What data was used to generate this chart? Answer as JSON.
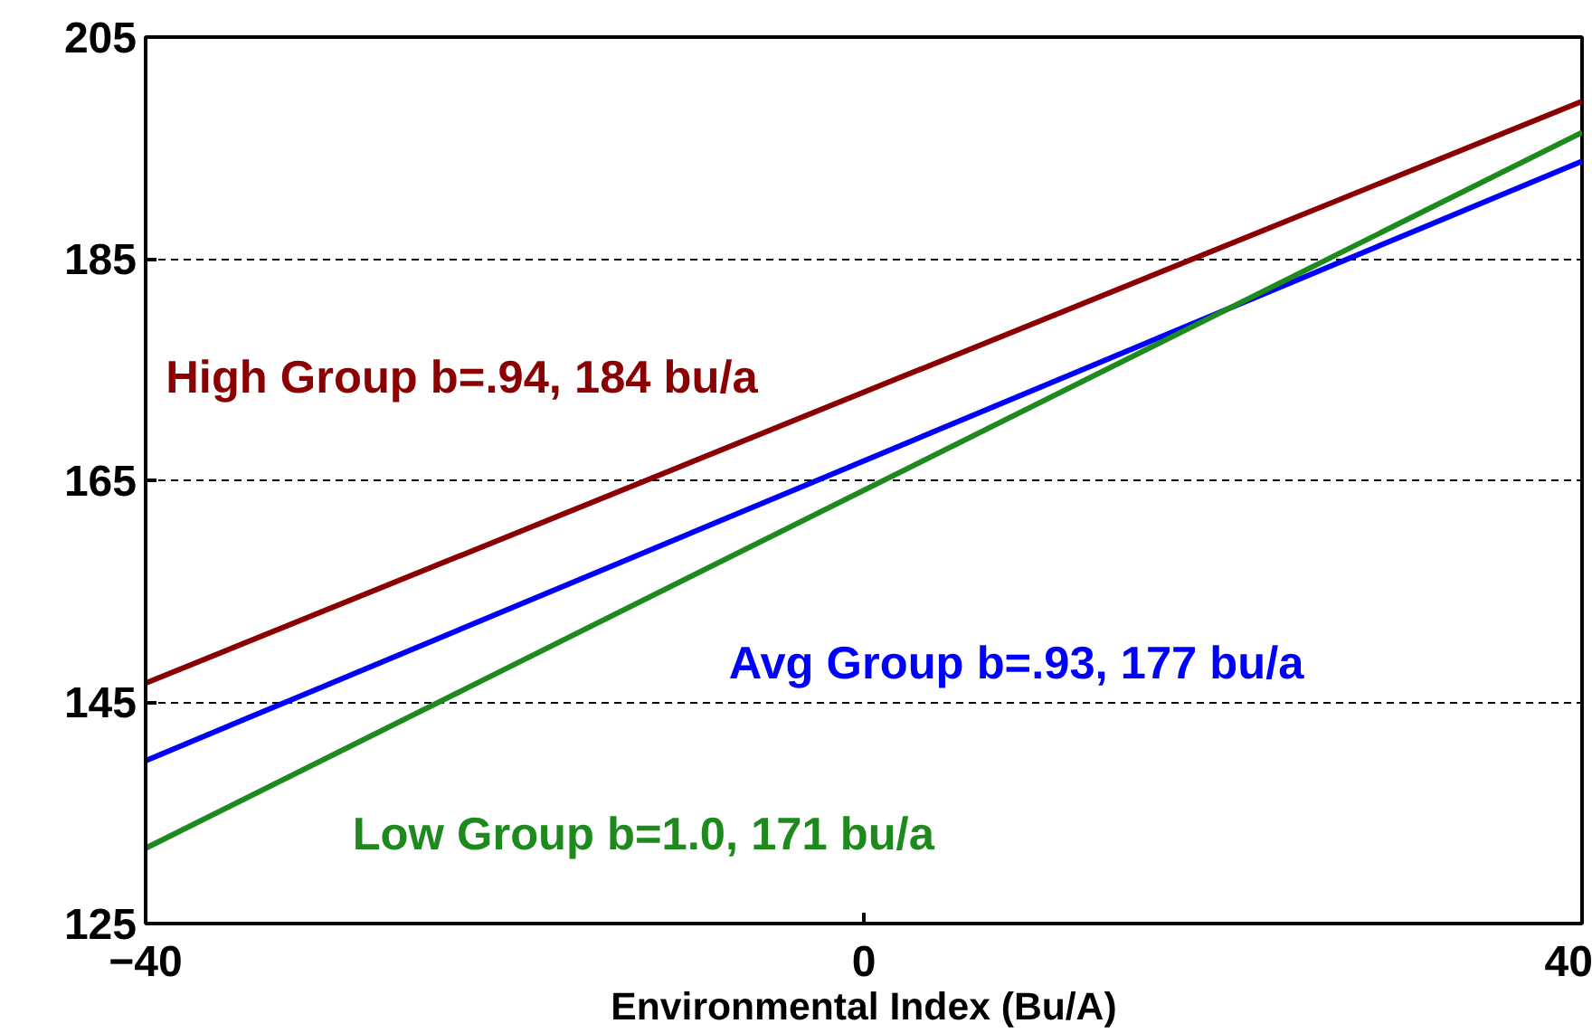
{
  "chart_data": {
    "type": "line",
    "xlabel": "Environmental Index (Bu/A)",
    "x": [
      -40,
      40
    ],
    "series": [
      {
        "name": "High Group b=.94, 184 bu/a",
        "color": "#8b0000",
        "values": [
          146.7,
          199.2
        ]
      },
      {
        "name": "Avg Group b=.93, 177 bu/a",
        "color": "#0000ff",
        "values": [
          139.7,
          193.8
        ]
      },
      {
        "name": "Low Group b=1.0, 171 bu/a",
        "color": "#1e8a1e",
        "values": [
          131.8,
          196.4
        ]
      }
    ],
    "xlim": [
      -40,
      40
    ],
    "ylim": [
      125,
      205
    ],
    "xticks": [
      -40,
      0,
      40
    ],
    "yticks": [
      125,
      145,
      165,
      185,
      205
    ],
    "grid": "y",
    "legend": false,
    "line_style": "solid"
  }
}
